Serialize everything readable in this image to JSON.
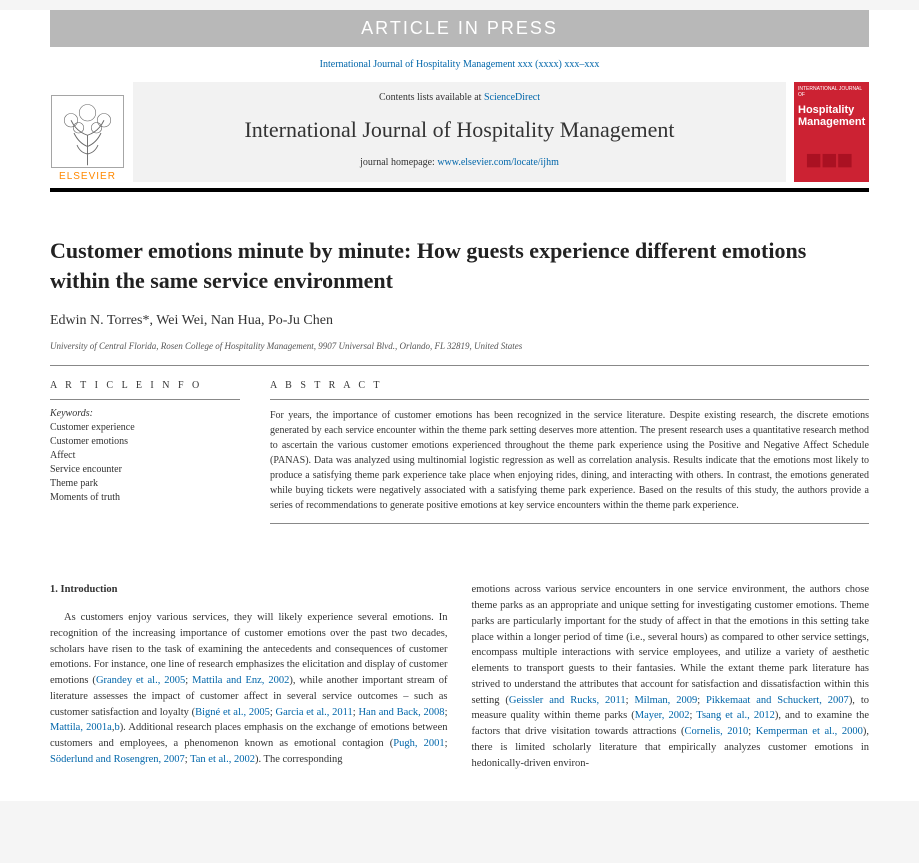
{
  "press_banner": "ARTICLE IN PRESS",
  "citation": "International Journal of Hospitality Management xxx (xxxx) xxx–xxx",
  "contents_prefix": "Contents lists available at ",
  "contents_link": "ScienceDirect",
  "journal_name": "International Journal of Hospitality Management",
  "homepage_prefix": "journal homepage: ",
  "homepage_url": "www.elsevier.com/locate/ijhm",
  "elsevier_label": "ELSEVIER",
  "cover_top": "INTERNATIONAL JOURNAL OF",
  "cover_main": "Hospitality Management",
  "title": "Customer emotions minute by minute: How guests experience different emotions within the same service environment",
  "authors": "Edwin N. Torres*, Wei Wei, Nan Hua, Po-Ju Chen",
  "affiliation": "University of Central Florida, Rosen College of Hospitality Management, 9907 Universal Blvd., Orlando, FL 32819, United States",
  "info_heading": "A R T I C L E  I N F O",
  "abs_heading": "A B S T R A C T",
  "keywords_label": "Keywords:",
  "keywords": [
    "Customer experience",
    "Customer emotions",
    "Affect",
    "Service encounter",
    "Theme park",
    "Moments of truth"
  ],
  "abstract": "For years, the importance of customer emotions has been recognized in the service literature. Despite existing research, the discrete emotions generated by each service encounter within the theme park setting deserves more attention. The present research uses a quantitative research method to ascertain the various customer emotions experienced throughout the theme park experience using the Positive and Negative Affect Schedule (PANAS). Data was analyzed using multinomial logistic regression as well as correlation analysis. Results indicate that the emotions most likely to produce a satisfying theme park experience take place when enjoying rides, dining, and interacting with others. In contrast, the emotions generated while buying tickets were negatively associated with a satisfying theme park experience. Based on the results of this study, the authors provide a series of recommendations to generate positive emotions at key service encounters within the theme park experience.",
  "section1": "1.  Introduction",
  "p1a": "As customers enjoy various services, they will likely experience several emotions. In recognition of the increasing importance of customer emotions over the past two decades, scholars have risen to the task of examining the antecedents and consequences of customer emotions. For instance, one line of research emphasizes the elicitation and display of customer emotions (",
  "c1": "Grandey et al., 2005",
  "p1b": "; ",
  "c2": "Mattila and Enz, 2002",
  "p1c": "), while another important stream of literature assesses the impact of customer affect in several service outcomes – such as customer satisfaction and loyalty (",
  "c3": "Bigné et al., 2005",
  "p1d": "; ",
  "c4": "Garcia et al., 2011",
  "p1e": "; ",
  "c5": "Han and Back, 2008",
  "p1f": "; ",
  "c6": "Mattila, 2001a",
  "p1g": ",",
  "c7": "b",
  "p1h": "). Additional research places emphasis on the exchange of emotions between customers and employees, a phenomenon known as emotional contagion (",
  "c8": "Pugh, 2001",
  "p1i": "; ",
  "c9": "Söderlund and Rosengren, 2007",
  "p1j": "; ",
  "c10": "Tan et al., 2002",
  "p1k": "). The corresponding",
  "p2a": "emotions across various service encounters in one service environment, the authors chose theme parks as an appropriate and unique setting for investigating customer emotions. Theme parks are particularly important for the study of affect in that the emotions in this setting take place within a longer period of time (i.e., several hours) as compared to other service settings, encompass multiple interactions with service employees, and utilize a variety of aesthetic elements to transport guests to their fantasies. While the extant theme park literature has strived to understand the attributes that account for satisfaction and dissatisfaction within this setting (",
  "c11": "Geissler and Rucks, 2011",
  "p2b": "; ",
  "c12": "Milman, 2009",
  "p2c": "; ",
  "c13": "Pikkemaat and Schuckert, 2007",
  "p2d": "), to measure quality within theme parks (",
  "c14": "Mayer, 2002",
  "p2e": "; ",
  "c15": "Tsang et al., 2012",
  "p2f": "), and to examine the factors that drive visitation towards attractions (",
  "c16": "Cornelis, 2010",
  "p2g": "; ",
  "c17": "Kemperman et al., 2000",
  "p2h": "), there is limited scholarly literature that empirically analyzes customer emotions in hedonically-driven environ-"
}
